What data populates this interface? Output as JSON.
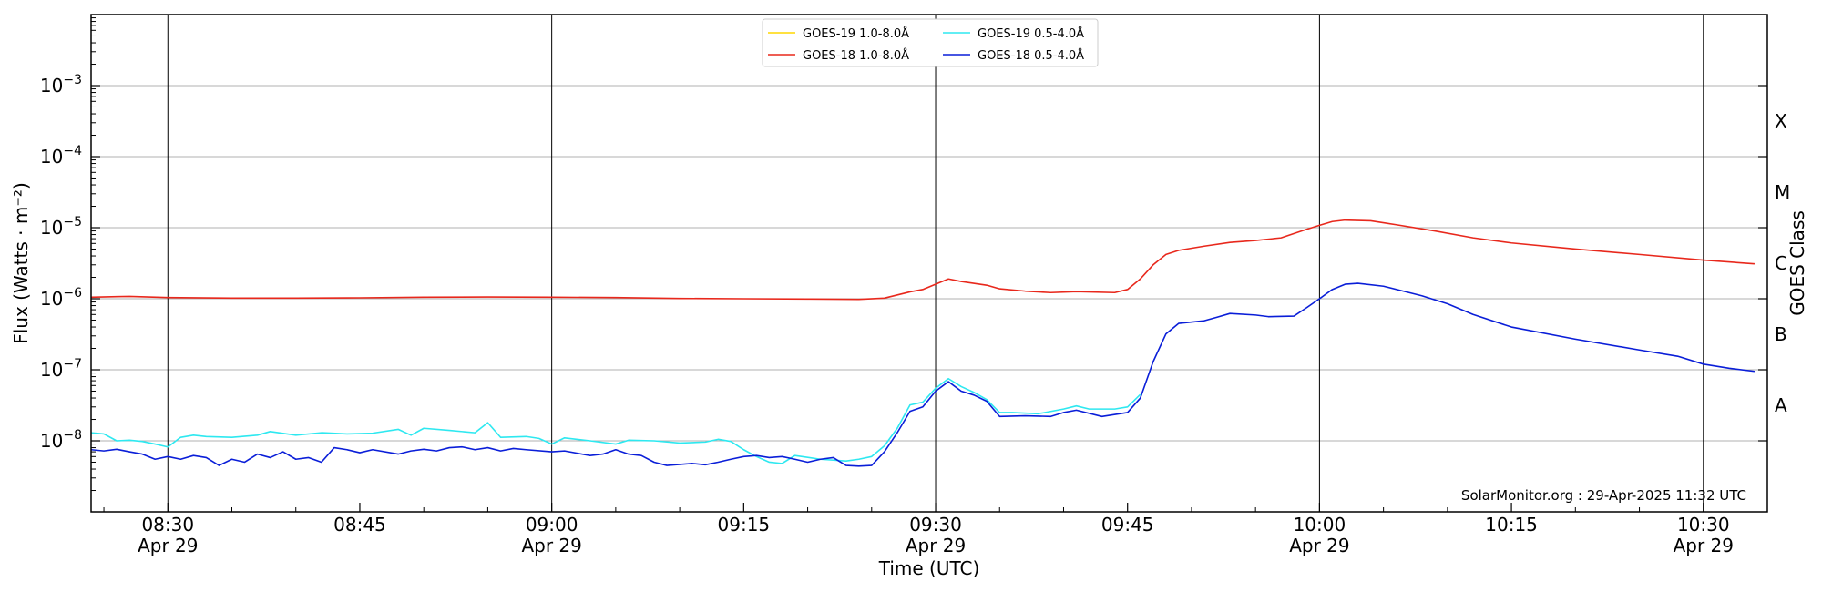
{
  "chart_data": {
    "type": "line",
    "ylabel": "Flux (Watts · m⁻²)",
    "xlabel": "Time (UTC)",
    "right_axis_title": "GOES Class",
    "credit": "SolarMonitor.org : 29-Apr-2025 11:32 UTC",
    "y_scale": "log",
    "ylim": [
      1e-09,
      0.01
    ],
    "xlim": [
      "08:24",
      "10:35"
    ],
    "y_ticks": [
      {
        "value": 1e-08,
        "base": "10",
        "exp": "−8"
      },
      {
        "value": 1e-07,
        "base": "10",
        "exp": "−7"
      },
      {
        "value": 1e-06,
        "base": "10",
        "exp": "−6"
      },
      {
        "value": 1e-05,
        "base": "10",
        "exp": "−5"
      },
      {
        "value": 0.0001,
        "base": "10",
        "exp": "−4"
      },
      {
        "value": 0.001,
        "base": "10",
        "exp": "−3"
      }
    ],
    "x_ticks": [
      {
        "time": "08:30",
        "label": "08:30",
        "date": "Apr 29",
        "major": true
      },
      {
        "time": "08:45",
        "label": "08:45",
        "date": "",
        "major": false
      },
      {
        "time": "09:00",
        "label": "09:00",
        "date": "Apr 29",
        "major": true
      },
      {
        "time": "09:15",
        "label": "09:15",
        "date": "",
        "major": false
      },
      {
        "time": "09:30",
        "label": "09:30",
        "date": "Apr 29",
        "major": true
      },
      {
        "time": "09:45",
        "label": "09:45",
        "date": "",
        "major": false
      },
      {
        "time": "10:00",
        "label": "10:00",
        "date": "Apr 29",
        "major": true
      },
      {
        "time": "10:15",
        "label": "10:15",
        "date": "",
        "major": false
      },
      {
        "time": "10:30",
        "label": "10:30",
        "date": "Apr 29",
        "major": true
      }
    ],
    "goes_classes": [
      {
        "label": "A",
        "value": 3.16e-08
      },
      {
        "label": "B",
        "value": 3.16e-07
      },
      {
        "label": "C",
        "value": 3.16e-06
      },
      {
        "label": "M",
        "value": 3.16e-05
      },
      {
        "label": "X",
        "value": 0.000316
      }
    ],
    "grid": "horizontal at decades, vertical at half hours",
    "legend_position": "top-center",
    "series": [
      {
        "name": "GOES-19 1.0-8.0Å",
        "color": "#ffd700",
        "points": []
      },
      {
        "name": "GOES-18 1.0-8.0Å",
        "color": "#e8281c",
        "points": [
          [
            "08:24",
            1.05e-06
          ],
          [
            "08:27",
            1.08e-06
          ],
          [
            "08:30",
            1.04e-06
          ],
          [
            "08:35",
            1.02e-06
          ],
          [
            "08:40",
            1.02e-06
          ],
          [
            "08:45",
            1.03e-06
          ],
          [
            "08:50",
            1.05e-06
          ],
          [
            "08:55",
            1.06e-06
          ],
          [
            "09:00",
            1.05e-06
          ],
          [
            "09:05",
            1.04e-06
          ],
          [
            "09:10",
            1.01e-06
          ],
          [
            "09:15",
            1e-06
          ],
          [
            "09:20",
            9.9e-07
          ],
          [
            "09:24",
            9.8e-07
          ],
          [
            "09:26",
            1.02e-06
          ],
          [
            "09:28",
            1.25e-06
          ],
          [
            "09:29",
            1.35e-06
          ],
          [
            "09:31",
            1.9e-06
          ],
          [
            "09:32",
            1.75e-06
          ],
          [
            "09:34",
            1.55e-06
          ],
          [
            "09:35",
            1.38e-06
          ],
          [
            "09:37",
            1.28e-06
          ],
          [
            "09:39",
            1.22e-06
          ],
          [
            "09:41",
            1.26e-06
          ],
          [
            "09:44",
            1.22e-06
          ],
          [
            "09:45",
            1.35e-06
          ],
          [
            "09:46",
            1.9e-06
          ],
          [
            "09:47",
            3e-06
          ],
          [
            "09:48",
            4.2e-06
          ],
          [
            "09:49",
            4.8e-06
          ],
          [
            "09:51",
            5.5e-06
          ],
          [
            "09:53",
            6.2e-06
          ],
          [
            "09:55",
            6.6e-06
          ],
          [
            "09:57",
            7.2e-06
          ],
          [
            "09:59",
            9.5e-06
          ],
          [
            "10:00",
            1.08e-05
          ],
          [
            "10:01",
            1.22e-05
          ],
          [
            "10:02",
            1.28e-05
          ],
          [
            "10:04",
            1.25e-05
          ],
          [
            "10:06",
            1.1e-05
          ],
          [
            "10:09",
            9e-06
          ],
          [
            "10:12",
            7.2e-06
          ],
          [
            "10:15",
            6.1e-06
          ],
          [
            "10:20",
            5e-06
          ],
          [
            "10:25",
            4.2e-06
          ],
          [
            "10:30",
            3.5e-06
          ],
          [
            "10:34",
            3.1e-06
          ]
        ]
      },
      {
        "name": "GOES-19 0.5-4.0Å",
        "color": "#2ee8f0",
        "points": [
          [
            "08:24",
            1.3e-08
          ],
          [
            "08:25",
            1.25e-08
          ],
          [
            "08:26",
            1e-08
          ],
          [
            "08:27",
            1.02e-08
          ],
          [
            "08:28",
            9.8e-09
          ],
          [
            "08:29",
            9e-09
          ],
          [
            "08:30",
            8.2e-09
          ],
          [
            "08:31",
            1.12e-08
          ],
          [
            "08:32",
            1.2e-08
          ],
          [
            "08:33",
            1.15e-08
          ],
          [
            "08:35",
            1.12e-08
          ],
          [
            "08:37",
            1.2e-08
          ],
          [
            "08:38",
            1.35e-08
          ],
          [
            "08:40",
            1.2e-08
          ],
          [
            "08:42",
            1.3e-08
          ],
          [
            "08:44",
            1.25e-08
          ],
          [
            "08:46",
            1.28e-08
          ],
          [
            "08:48",
            1.45e-08
          ],
          [
            "08:49",
            1.2e-08
          ],
          [
            "08:50",
            1.5e-08
          ],
          [
            "08:52",
            1.4e-08
          ],
          [
            "08:54",
            1.3e-08
          ],
          [
            "08:55",
            1.8e-08
          ],
          [
            "08:56",
            1.12e-08
          ],
          [
            "08:58",
            1.15e-08
          ],
          [
            "08:59",
            1.08e-08
          ],
          [
            "09:00",
            9e-09
          ],
          [
            "09:01",
            1.1e-08
          ],
          [
            "09:03",
            1e-08
          ],
          [
            "09:05",
            9e-09
          ],
          [
            "09:06",
            1.02e-08
          ],
          [
            "09:08",
            1e-08
          ],
          [
            "09:10",
            9.3e-09
          ],
          [
            "09:12",
            9.6e-09
          ],
          [
            "09:13",
            1.05e-08
          ],
          [
            "09:14",
            9.8e-09
          ],
          [
            "09:15",
            7.5e-09
          ],
          [
            "09:16",
            6e-09
          ],
          [
            "09:17",
            5e-09
          ],
          [
            "09:18",
            4.8e-09
          ],
          [
            "09:19",
            6.2e-09
          ],
          [
            "09:21",
            5.5e-09
          ],
          [
            "09:23",
            5.2e-09
          ],
          [
            "09:24",
            5.5e-09
          ],
          [
            "09:25",
            6e-09
          ],
          [
            "09:26",
            8.5e-09
          ],
          [
            "09:27",
            1.5e-08
          ],
          [
            "09:28",
            3.2e-08
          ],
          [
            "09:29",
            3.5e-08
          ],
          [
            "09:30",
            5.5e-08
          ],
          [
            "09:31",
            7.5e-08
          ],
          [
            "09:32",
            5.8e-08
          ],
          [
            "09:33",
            4.8e-08
          ],
          [
            "09:34",
            3.8e-08
          ],
          [
            "09:35",
            2.5e-08
          ],
          [
            "09:36",
            2.5e-08
          ],
          [
            "09:38",
            2.4e-08
          ],
          [
            "09:40",
            2.8e-08
          ],
          [
            "09:41",
            3.1e-08
          ],
          [
            "09:42",
            2.8e-08
          ],
          [
            "09:44",
            2.8e-08
          ],
          [
            "09:45",
            3e-08
          ],
          [
            "09:46",
            4.5e-08
          ]
        ]
      },
      {
        "name": "GOES-18 0.5-4.0Å",
        "color": "#0a1ed8",
        "points": [
          [
            "08:24",
            7.5e-09
          ],
          [
            "08:25",
            7.2e-09
          ],
          [
            "08:26",
            7.6e-09
          ],
          [
            "08:27",
            7e-09
          ],
          [
            "08:28",
            6.5e-09
          ],
          [
            "08:29",
            5.5e-09
          ],
          [
            "08:30",
            6e-09
          ],
          [
            "08:31",
            5.5e-09
          ],
          [
            "08:32",
            6.2e-09
          ],
          [
            "08:33",
            5.8e-09
          ],
          [
            "08:34",
            4.5e-09
          ],
          [
            "08:35",
            5.5e-09
          ],
          [
            "08:36",
            5e-09
          ],
          [
            "08:37",
            6.5e-09
          ],
          [
            "08:38",
            5.8e-09
          ],
          [
            "08:39",
            7e-09
          ],
          [
            "08:40",
            5.5e-09
          ],
          [
            "08:41",
            5.8e-09
          ],
          [
            "08:42",
            5e-09
          ],
          [
            "08:43",
            8e-09
          ],
          [
            "08:44",
            7.5e-09
          ],
          [
            "08:45",
            6.8e-09
          ],
          [
            "08:46",
            7.5e-09
          ],
          [
            "08:48",
            6.5e-09
          ],
          [
            "08:49",
            7.2e-09
          ],
          [
            "08:50",
            7.6e-09
          ],
          [
            "08:51",
            7.2e-09
          ],
          [
            "08:52",
            8e-09
          ],
          [
            "08:53",
            8.2e-09
          ],
          [
            "08:54",
            7.5e-09
          ],
          [
            "08:55",
            8e-09
          ],
          [
            "08:56",
            7.2e-09
          ],
          [
            "08:57",
            7.8e-09
          ],
          [
            "08:58",
            7.5e-09
          ],
          [
            "09:00",
            7e-09
          ],
          [
            "09:01",
            7.2e-09
          ],
          [
            "09:03",
            6.2e-09
          ],
          [
            "09:04",
            6.5e-09
          ],
          [
            "09:05",
            7.5e-09
          ],
          [
            "09:06",
            6.5e-09
          ],
          [
            "09:07",
            6.2e-09
          ],
          [
            "09:08",
            5e-09
          ],
          [
            "09:09",
            4.5e-09
          ],
          [
            "09:11",
            4.8e-09
          ],
          [
            "09:12",
            4.6e-09
          ],
          [
            "09:13",
            5e-09
          ],
          [
            "09:14",
            5.5e-09
          ],
          [
            "09:15",
            6e-09
          ],
          [
            "09:16",
            6.2e-09
          ],
          [
            "09:17",
            5.8e-09
          ],
          [
            "09:18",
            6e-09
          ],
          [
            "09:19",
            5.5e-09
          ],
          [
            "09:20",
            5e-09
          ],
          [
            "09:21",
            5.5e-09
          ],
          [
            "09:22",
            5.8e-09
          ],
          [
            "09:23",
            4.5e-09
          ],
          [
            "09:24",
            4.4e-09
          ],
          [
            "09:25",
            4.5e-09
          ],
          [
            "09:26",
            7e-09
          ],
          [
            "09:27",
            1.3e-08
          ],
          [
            "09:28",
            2.6e-08
          ],
          [
            "09:29",
            3e-08
          ],
          [
            "09:30",
            5e-08
          ],
          [
            "09:31",
            6.8e-08
          ],
          [
            "09:32",
            5e-08
          ],
          [
            "09:33",
            4.4e-08
          ],
          [
            "09:34",
            3.6e-08
          ],
          [
            "09:35",
            2.2e-08
          ],
          [
            "09:37",
            2.25e-08
          ],
          [
            "09:39",
            2.2e-08
          ],
          [
            "09:40",
            2.5e-08
          ],
          [
            "09:41",
            2.7e-08
          ],
          [
            "09:43",
            2.2e-08
          ],
          [
            "09:45",
            2.5e-08
          ],
          [
            "09:46",
            4e-08
          ],
          [
            "09:47",
            1.3e-07
          ],
          [
            "09:48",
            3.2e-07
          ],
          [
            "09:49",
            4.5e-07
          ],
          [
            "09:51",
            4.9e-07
          ],
          [
            "09:52",
            5.5e-07
          ],
          [
            "09:53",
            6.2e-07
          ],
          [
            "09:55",
            5.9e-07
          ],
          [
            "09:56",
            5.6e-07
          ],
          [
            "09:58",
            5.7e-07
          ],
          [
            "09:59",
            7.5e-07
          ],
          [
            "10:00",
            1e-06
          ],
          [
            "10:01",
            1.35e-06
          ],
          [
            "10:02",
            1.6e-06
          ],
          [
            "10:03",
            1.65e-06
          ],
          [
            "10:05",
            1.5e-06
          ],
          [
            "10:08",
            1.1e-06
          ],
          [
            "10:10",
            8.5e-07
          ],
          [
            "10:12",
            6e-07
          ],
          [
            "10:15",
            4e-07
          ],
          [
            "10:20",
            2.7e-07
          ],
          [
            "10:25",
            1.9e-07
          ],
          [
            "10:28",
            1.55e-07
          ],
          [
            "10:30",
            1.2e-07
          ],
          [
            "10:32",
            1.05e-07
          ],
          [
            "10:34",
            9.5e-08
          ]
        ]
      }
    ]
  }
}
